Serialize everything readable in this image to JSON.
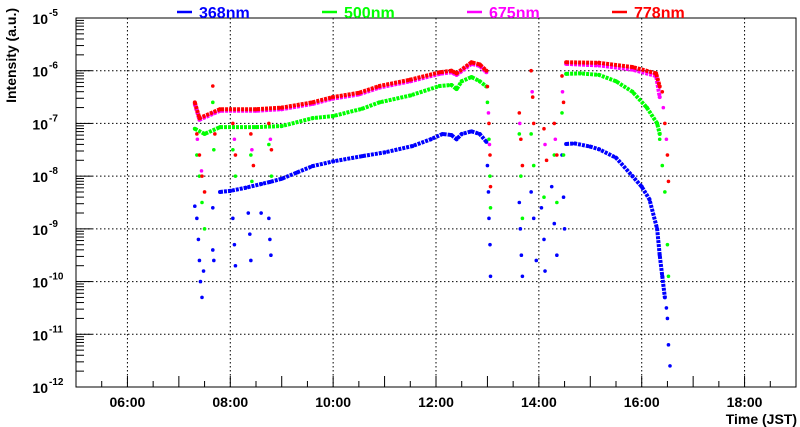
{
  "chart_data": {
    "type": "scatter",
    "title": "",
    "xlabel": "Time (JST)",
    "ylabel": "Intensity (a.u.)",
    "xlim": [
      5,
      19
    ],
    "ylim": [
      1e-12,
      1e-05
    ],
    "yscale": "log",
    "grid": true,
    "legend_placement": "top",
    "x_ticks": [
      {
        "value": 6,
        "label": "06:00"
      },
      {
        "value": 8,
        "label": "08:00"
      },
      {
        "value": 10,
        "label": "10:00"
      },
      {
        "value": 12,
        "label": "12:00"
      },
      {
        "value": 14,
        "label": "14:00"
      },
      {
        "value": 16,
        "label": "16:00"
      },
      {
        "value": 18,
        "label": "18:00"
      }
    ],
    "y_ticks": [
      {
        "exp": -5,
        "base": "10",
        "sup": "-5"
      },
      {
        "exp": -6,
        "base": "10",
        "sup": "-6"
      },
      {
        "exp": -7,
        "base": "10",
        "sup": "-7"
      },
      {
        "exp": -8,
        "base": "10",
        "sup": "-8"
      },
      {
        "exp": -9,
        "base": "10",
        "sup": "-9"
      },
      {
        "exp": -10,
        "base": "10",
        "sup": "-10"
      },
      {
        "exp": -11,
        "base": "10",
        "sup": "-11"
      },
      {
        "exp": -12,
        "base": "10",
        "sup": "-12"
      }
    ],
    "x_unit": "hours (JST)",
    "value_format": "[hour, log10(intensity)]",
    "series": [
      {
        "name": "368nm",
        "color": "#0000ff",
        "segments": [
          [
            [
              7.8,
              -8.3
            ],
            [
              8.0,
              -8.28
            ],
            [
              8.3,
              -8.22
            ],
            [
              8.6,
              -8.15
            ],
            [
              8.77,
              -8.11
            ],
            [
              9.0,
              -8.05
            ],
            [
              9.3,
              -7.93
            ],
            [
              9.6,
              -7.81
            ],
            [
              10.0,
              -7.72
            ],
            [
              10.57,
              -7.62
            ],
            [
              11.0,
              -7.55
            ],
            [
              11.54,
              -7.43
            ],
            [
              11.9,
              -7.3
            ],
            [
              12.13,
              -7.2
            ],
            [
              12.3,
              -7.22
            ],
            [
              12.4,
              -7.3
            ],
            [
              12.5,
              -7.2
            ],
            [
              12.69,
              -7.15
            ],
            [
              12.85,
              -7.2
            ],
            [
              12.98,
              -7.35
            ]
          ],
          [
            [
              14.53,
              -7.39
            ],
            [
              14.7,
              -7.38
            ],
            [
              15.0,
              -7.44
            ],
            [
              15.17,
              -7.49
            ],
            [
              15.5,
              -7.65
            ],
            [
              15.82,
              -8.0
            ],
            [
              16.0,
              -8.2
            ],
            [
              16.15,
              -8.44
            ],
            [
              16.3,
              -9.0
            ],
            [
              16.35,
              -9.5
            ],
            [
              16.4,
              -9.9
            ],
            [
              16.45,
              -10.3
            ]
          ]
        ],
        "scatter": [
          [
            7.31,
            -8.57
          ],
          [
            7.35,
            -8.8
          ],
          [
            7.38,
            -9.2
          ],
          [
            7.4,
            -9.6
          ],
          [
            7.42,
            -10.0
          ],
          [
            7.45,
            -10.3
          ],
          [
            7.48,
            -9.8
          ],
          [
            7.66,
            -8.6
          ],
          [
            7.66,
            -9.4
          ],
          [
            7.68,
            -9.6
          ],
          [
            8.05,
            -8.8
          ],
          [
            8.08,
            -9.3
          ],
          [
            8.1,
            -9.7
          ],
          [
            8.35,
            -8.7
          ],
          [
            8.38,
            -9.1
          ],
          [
            8.4,
            -9.6
          ],
          [
            8.6,
            -8.7
          ],
          [
            8.75,
            -8.8
          ],
          [
            8.77,
            -9.2
          ],
          [
            8.79,
            -9.5
          ],
          [
            13.0,
            -7.8
          ],
          [
            13.02,
            -8.3
          ],
          [
            13.03,
            -8.8
          ],
          [
            13.05,
            -9.3
          ],
          [
            13.06,
            -9.9
          ],
          [
            13.62,
            -8.5
          ],
          [
            13.64,
            -9.0
          ],
          [
            13.66,
            -9.5
          ],
          [
            13.68,
            -9.9
          ],
          [
            13.85,
            -8.3
          ],
          [
            13.9,
            -8.8
          ],
          [
            13.95,
            -9.6
          ],
          [
            14.05,
            -8.6
          ],
          [
            14.1,
            -9.2
          ],
          [
            14.12,
            -9.8
          ],
          [
            14.25,
            -8.2
          ],
          [
            14.3,
            -8.9
          ],
          [
            14.35,
            -9.5
          ],
          [
            14.45,
            -7.6
          ],
          [
            14.48,
            -8.4
          ],
          [
            14.5,
            -9.0
          ],
          [
            16.48,
            -10.5
          ],
          [
            16.5,
            -10.7
          ],
          [
            16.52,
            -11.2
          ],
          [
            16.55,
            -11.6
          ]
        ]
      },
      {
        "name": "500nm",
        "color": "#00ff00",
        "segments": [
          [
            [
              7.31,
              -7.1
            ],
            [
              7.5,
              -7.2
            ],
            [
              7.8,
              -7.07
            ],
            [
              8.5,
              -7.07
            ],
            [
              9.0,
              -7.05
            ],
            [
              9.6,
              -6.9
            ],
            [
              10.0,
              -6.86
            ],
            [
              10.57,
              -6.72
            ],
            [
              10.9,
              -6.6
            ],
            [
              11.5,
              -6.47
            ],
            [
              12.07,
              -6.29
            ],
            [
              12.3,
              -6.27
            ],
            [
              12.4,
              -6.35
            ],
            [
              12.5,
              -6.2
            ],
            [
              12.69,
              -6.12
            ],
            [
              12.85,
              -6.2
            ],
            [
              12.98,
              -6.3
            ]
          ],
          [
            [
              14.53,
              -6.06
            ],
            [
              14.8,
              -6.05
            ],
            [
              15.17,
              -6.08
            ],
            [
              15.5,
              -6.2
            ],
            [
              15.82,
              -6.4
            ],
            [
              16.1,
              -6.7
            ],
            [
              16.3,
              -7.0
            ],
            [
              16.35,
              -7.2
            ]
          ]
        ],
        "scatter": [
          [
            7.35,
            -7.6
          ],
          [
            7.4,
            -8.0
          ],
          [
            7.45,
            -8.5
          ],
          [
            7.5,
            -9.0
          ],
          [
            7.66,
            -6.6
          ],
          [
            7.68,
            -7.5
          ],
          [
            8.05,
            -7.5
          ],
          [
            8.1,
            -8.0
          ],
          [
            8.4,
            -7.6
          ],
          [
            8.42,
            -8.1
          ],
          [
            8.75,
            -7.4
          ],
          [
            8.8,
            -8.0
          ],
          [
            13.0,
            -6.6
          ],
          [
            13.03,
            -7.3
          ],
          [
            13.05,
            -8.0
          ],
          [
            13.06,
            -8.6
          ],
          [
            13.62,
            -7.2
          ],
          [
            13.65,
            -8.0
          ],
          [
            13.68,
            -8.8
          ],
          [
            13.85,
            -7.2
          ],
          [
            13.9,
            -7.8
          ],
          [
            14.1,
            -8.4
          ],
          [
            14.3,
            -7.6
          ],
          [
            14.35,
            -8.5
          ],
          [
            14.45,
            -6.8
          ],
          [
            14.48,
            -7.6
          ],
          [
            16.35,
            -7.3
          ],
          [
            16.4,
            -7.8
          ],
          [
            16.45,
            -8.3
          ],
          [
            16.5,
            -9.3
          ],
          [
            16.52,
            -9.9
          ]
        ]
      },
      {
        "name": "675nm",
        "color": "#ff00ff",
        "segments": [
          [
            [
              7.31,
              -6.63
            ],
            [
              7.4,
              -6.93
            ],
            [
              7.8,
              -6.76
            ],
            [
              8.5,
              -6.76
            ],
            [
              9.0,
              -6.73
            ],
            [
              9.6,
              -6.63
            ],
            [
              9.99,
              -6.53
            ],
            [
              10.5,
              -6.45
            ],
            [
              10.9,
              -6.32
            ],
            [
              11.5,
              -6.2
            ],
            [
              12.07,
              -6.06
            ],
            [
              12.3,
              -6.03
            ],
            [
              12.4,
              -6.08
            ],
            [
              12.69,
              -5.87
            ],
            [
              12.85,
              -5.91
            ],
            [
              12.98,
              -6.03
            ]
          ],
          [
            [
              14.53,
              -5.87
            ],
            [
              15.17,
              -5.9
            ],
            [
              15.82,
              -5.98
            ],
            [
              16.28,
              -6.1
            ],
            [
              16.35,
              -6.5
            ]
          ]
        ],
        "scatter": [
          [
            7.36,
            -7.3
          ],
          [
            7.44,
            -7.9
          ],
          [
            7.68,
            -6.8
          ],
          [
            8.08,
            -7.3
          ],
          [
            8.42,
            -7.5
          ],
          [
            8.78,
            -7.3
          ],
          [
            13.02,
            -6.8
          ],
          [
            13.04,
            -7.4
          ],
          [
            13.63,
            -7.0
          ],
          [
            13.87,
            -6.4
          ],
          [
            14.12,
            -7.4
          ],
          [
            14.32,
            -7.3
          ],
          [
            14.46,
            -6.4
          ],
          [
            16.42,
            -6.7
          ],
          [
            16.48,
            -7.3
          ]
        ]
      },
      {
        "name": "778nm",
        "color": "#ff0000",
        "segments": [
          [
            [
              7.31,
              -6.6
            ],
            [
              7.4,
              -6.9
            ],
            [
              7.8,
              -6.73
            ],
            [
              8.5,
              -6.73
            ],
            [
              9.0,
              -6.7
            ],
            [
              9.6,
              -6.6
            ],
            [
              9.99,
              -6.5
            ],
            [
              10.5,
              -6.42
            ],
            [
              10.9,
              -6.29
            ],
            [
              11.5,
              -6.17
            ],
            [
              12.07,
              -6.03
            ],
            [
              12.3,
              -6.0
            ],
            [
              12.4,
              -6.05
            ],
            [
              12.69,
              -5.84
            ],
            [
              12.85,
              -5.88
            ],
            [
              12.98,
              -6.0
            ]
          ],
          [
            [
              14.53,
              -5.84
            ],
            [
              15.17,
              -5.85
            ],
            [
              15.82,
              -5.93
            ],
            [
              16.28,
              -6.05
            ],
            [
              16.35,
              -6.3
            ]
          ]
        ],
        "scatter": [
          [
            7.35,
            -7.2
          ],
          [
            7.4,
            -7.6
          ],
          [
            7.45,
            -8.0
          ],
          [
            7.5,
            -8.3
          ],
          [
            7.66,
            -6.29
          ],
          [
            7.7,
            -7.2
          ],
          [
            8.05,
            -7.0
          ],
          [
            8.1,
            -7.6
          ],
          [
            8.4,
            -7.2
          ],
          [
            8.45,
            -7.8
          ],
          [
            8.75,
            -7.0
          ],
          [
            8.8,
            -7.5
          ],
          [
            13.0,
            -6.3
          ],
          [
            13.03,
            -7.0
          ],
          [
            13.05,
            -7.6
          ],
          [
            13.06,
            -8.2
          ],
          [
            13.62,
            -6.8
          ],
          [
            13.65,
            -7.3
          ],
          [
            13.68,
            -7.8
          ],
          [
            13.85,
            -6.0
          ],
          [
            13.88,
            -6.5
          ],
          [
            13.9,
            -7.0
          ],
          [
            14.1,
            -7.1
          ],
          [
            14.15,
            -7.7
          ],
          [
            14.3,
            -7.0
          ],
          [
            14.35,
            -7.6
          ],
          [
            14.45,
            -6.1
          ],
          [
            14.48,
            -6.6
          ],
          [
            16.4,
            -6.4
          ],
          [
            16.45,
            -7.0
          ],
          [
            16.5,
            -7.6
          ],
          [
            16.52,
            -8.1
          ]
        ]
      }
    ]
  }
}
